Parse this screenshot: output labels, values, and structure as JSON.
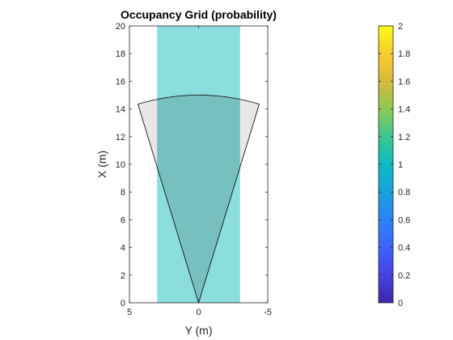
{
  "chart_data": {
    "type": "heatmap",
    "title": "Occupancy Grid (probability)",
    "xlabel": "Y (m)",
    "ylabel": "X (m)",
    "xlim": [
      5,
      -5
    ],
    "ylim": [
      0,
      20
    ],
    "xticks": [
      "5",
      "0",
      "-5"
    ],
    "yticks": [
      "0",
      "2",
      "4",
      "6",
      "8",
      "10",
      "12",
      "14",
      "16",
      "18",
      "20"
    ],
    "occupied_band": {
      "y_from": 3,
      "y_to": -3,
      "x_from": 0,
      "x_to": 20,
      "color": "#8BDEDD"
    },
    "sensor_sector": {
      "origin_x": 0,
      "origin_y": 0,
      "range": 15,
      "half_angle_deg": 17,
      "fill": "#E3E3E3",
      "overlap_fill": "#78BFBF",
      "edge": "#000000"
    },
    "colorbar": {
      "limits": [
        0,
        2
      ],
      "ticks": [
        "0",
        "0.2",
        "0.4",
        "0.6",
        "0.8",
        "1",
        "1.2",
        "1.4",
        "1.6",
        "1.8",
        "2"
      ],
      "colormap": "parula"
    }
  }
}
